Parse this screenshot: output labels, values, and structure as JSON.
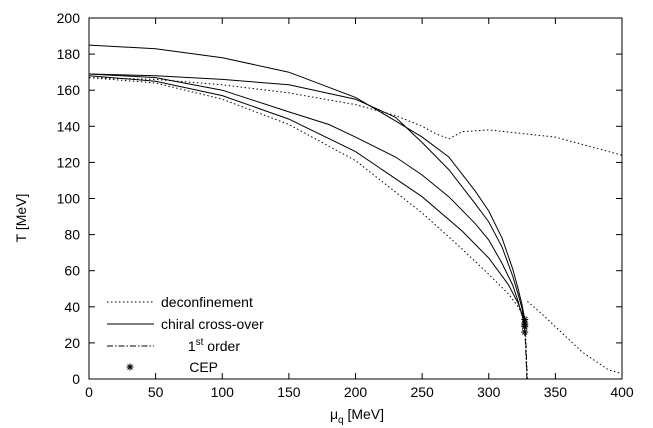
{
  "chart_data": {
    "type": "line",
    "title": "",
    "xlabel": {
      "main": "μ",
      "sub": "q",
      "unit": " [MeV]"
    },
    "ylabel": "T [MeV]",
    "xlim": [
      0,
      400
    ],
    "ylim": [
      0,
      200
    ],
    "xticks": [
      0,
      50,
      100,
      150,
      200,
      250,
      300,
      350,
      400
    ],
    "yticks": [
      0,
      20,
      40,
      60,
      80,
      100,
      120,
      140,
      160,
      180,
      200
    ],
    "grid": false,
    "legend_position": "bottom-left",
    "legend": [
      {
        "label": "deconfinement",
        "style": "dotted"
      },
      {
        "label": "chiral cross-over",
        "style": "solid"
      },
      {
        "label": "1",
        "sup": "st",
        "suffix": " order",
        "style": "dashdot"
      },
      {
        "label": "CEP",
        "style": "star"
      }
    ],
    "series": [
      {
        "style": "dotted",
        "points": [
          [
            0,
            167
          ],
          [
            50,
            166
          ],
          [
            100,
            163
          ],
          [
            150,
            158.5
          ],
          [
            200,
            152
          ],
          [
            230,
            146
          ],
          [
            250,
            140
          ],
          [
            260,
            136
          ],
          [
            270,
            133
          ],
          [
            280,
            137
          ],
          [
            300,
            138
          ],
          [
            350,
            134
          ],
          [
            400,
            124
          ]
        ]
      },
      {
        "style": "dotted",
        "points": [
          [
            0,
            167
          ],
          [
            50,
            164
          ],
          [
            100,
            155
          ],
          [
            150,
            141
          ],
          [
            200,
            121
          ],
          [
            250,
            92
          ],
          [
            280,
            72
          ],
          [
            300,
            58
          ],
          [
            315,
            47
          ],
          [
            322,
            40
          ],
          [
            325,
            36
          ]
        ]
      },
      {
        "style": "dotted",
        "points": [
          [
            329,
            43
          ],
          [
            340,
            36
          ],
          [
            350,
            29
          ],
          [
            360,
            22
          ],
          [
            370,
            15
          ],
          [
            380,
            10
          ],
          [
            390,
            5
          ],
          [
            400,
            3
          ]
        ]
      },
      {
        "style": "solid",
        "points": [
          [
            0,
            185
          ],
          [
            50,
            183
          ],
          [
            100,
            178
          ],
          [
            150,
            170
          ],
          [
            200,
            156
          ],
          [
            230,
            143
          ],
          [
            250,
            134
          ],
          [
            270,
            123
          ],
          [
            290,
            104
          ],
          [
            300,
            93
          ],
          [
            310,
            78
          ],
          [
            318,
            61
          ],
          [
            322,
            50
          ],
          [
            325,
            41
          ],
          [
            327,
            33
          ]
        ]
      },
      {
        "style": "solid",
        "points": [
          [
            0,
            169
          ],
          [
            50,
            168
          ],
          [
            100,
            166
          ],
          [
            150,
            163
          ],
          [
            200,
            155
          ],
          [
            230,
            145
          ],
          [
            250,
            131
          ],
          [
            270,
            116
          ],
          [
            290,
            97
          ],
          [
            300,
            87
          ],
          [
            310,
            73
          ],
          [
            318,
            57
          ],
          [
            322,
            47
          ],
          [
            325,
            39
          ],
          [
            327,
            31
          ]
        ]
      },
      {
        "style": "solid",
        "points": [
          [
            0,
            169
          ],
          [
            50,
            167
          ],
          [
            100,
            160
          ],
          [
            150,
            148
          ],
          [
            180,
            141
          ],
          [
            200,
            134
          ],
          [
            230,
            123
          ],
          [
            250,
            113
          ],
          [
            270,
            101
          ],
          [
            290,
            86
          ],
          [
            300,
            77
          ],
          [
            310,
            64
          ],
          [
            318,
            52
          ],
          [
            322,
            43
          ],
          [
            325,
            35
          ],
          [
            327,
            30
          ]
        ]
      },
      {
        "style": "solid",
        "points": [
          [
            0,
            168
          ],
          [
            50,
            165
          ],
          [
            100,
            157
          ],
          [
            150,
            144
          ],
          [
            200,
            126
          ],
          [
            250,
            101
          ],
          [
            280,
            82
          ],
          [
            300,
            67
          ],
          [
            315,
            52
          ],
          [
            322,
            42
          ],
          [
            325,
            36
          ],
          [
            327,
            29
          ]
        ]
      },
      {
        "style": "dashdot",
        "points": [
          [
            327,
            33
          ],
          [
            328,
            18
          ],
          [
            328.5,
            8
          ],
          [
            329,
            0
          ]
        ]
      },
      {
        "style": "dashdot",
        "points": [
          [
            327,
            29
          ],
          [
            327.8,
            15
          ],
          [
            328.3,
            5
          ],
          [
            328.6,
            0
          ]
        ]
      }
    ],
    "cep_points": [
      [
        327,
        33
      ],
      [
        327,
        31
      ],
      [
        327,
        30
      ],
      [
        327,
        29
      ],
      [
        327,
        26
      ]
    ]
  }
}
